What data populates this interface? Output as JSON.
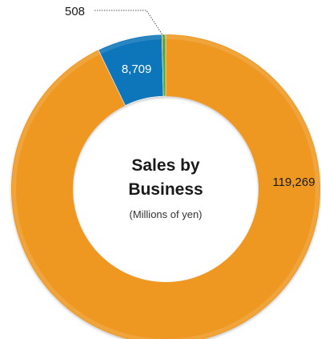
{
  "chart_data": {
    "type": "pie",
    "variant": "donut",
    "title_lines": [
      "Sales by",
      "Business"
    ],
    "subtitle": "(Millions of yen)",
    "slices": [
      {
        "value": 119269,
        "label": "119,269",
        "color": "#ee9820",
        "label_color": "#1a1a1a"
      },
      {
        "value": 8709,
        "label": "8,709",
        "color": "#0b75b9",
        "label_color": "#ffffff"
      },
      {
        "value": 508,
        "label": "508",
        "color": "#5aa63a",
        "label_color": "#1a1a1a"
      }
    ]
  }
}
